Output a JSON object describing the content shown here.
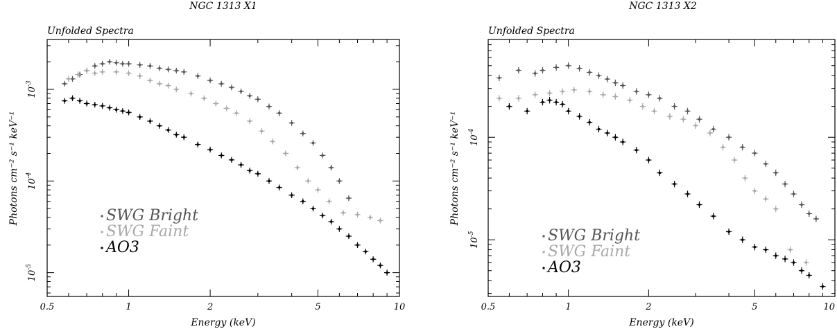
{
  "chart_data": [
    {
      "type": "scatter",
      "title": "NGC 1313 X1",
      "subtitle": "Unfolded Spectra",
      "xlabel": "Energy (keV)",
      "ylabel": "Photons cm⁻² s⁻¹ keV⁻¹",
      "xscale": "log",
      "yscale": "log",
      "xlim": [
        0.5,
        10
      ],
      "ylim": [
        5.5e-06,
        0.0035
      ],
      "x_ticks": [
        {
          "value": 0.5,
          "label": "0.5"
        },
        {
          "value": 1,
          "label": "1"
        },
        {
          "value": 2,
          "label": "2"
        },
        {
          "value": 5,
          "label": "5"
        },
        {
          "value": 10,
          "label": "10"
        }
      ],
      "y_ticks": [
        {
          "value": 1e-05,
          "mantissa": "10",
          "exp": "-5"
        },
        {
          "value": 0.0001,
          "mantissa": "10",
          "exp": "-4"
        },
        {
          "value": 0.001,
          "mantissa": "10",
          "exp": "-3"
        }
      ],
      "legend": {
        "placement": "bottom-left"
      },
      "series": [
        {
          "name": "SWG Bright",
          "color": "#555555",
          "x": [
            0.58,
            0.62,
            0.66,
            0.7,
            0.75,
            0.8,
            0.85,
            0.9,
            0.95,
            1.0,
            1.1,
            1.2,
            1.3,
            1.4,
            1.5,
            1.6,
            1.8,
            2.0,
            2.2,
            2.4,
            2.6,
            2.8,
            3.0,
            3.3,
            3.6,
            4.0,
            4.4,
            4.8,
            5.2,
            5.6,
            6.0,
            6.5
          ],
          "y": [
            0.00115,
            0.0013,
            0.00145,
            0.0016,
            0.0018,
            0.0019,
            0.002,
            0.00195,
            0.0019,
            0.0019,
            0.00185,
            0.0018,
            0.0017,
            0.00165,
            0.0016,
            0.00155,
            0.0014,
            0.00125,
            0.00115,
            0.00105,
            0.00095,
            0.00085,
            0.00078,
            0.00065,
            0.00055,
            0.00043,
            0.00033,
            0.00026,
            0.00019,
            0.00014,
            0.0001,
            6.5e-05
          ]
        },
        {
          "name": "SWG Faint",
          "color": "#a8a8a8",
          "x": [
            0.6,
            0.65,
            0.7,
            0.75,
            0.8,
            0.9,
            1.0,
            1.1,
            1.2,
            1.3,
            1.4,
            1.5,
            1.7,
            1.9,
            2.1,
            2.3,
            2.5,
            2.8,
            3.1,
            3.4,
            3.8,
            4.2,
            4.6,
            5.0,
            5.5,
            6.2,
            7.0,
            7.8,
            8.5
          ],
          "y": [
            0.0013,
            0.00145,
            0.0016,
            0.0015,
            0.00155,
            0.00155,
            0.0015,
            0.0014,
            0.00125,
            0.00115,
            0.0011,
            0.001,
            0.0009,
            0.0008,
            0.0007,
            0.00062,
            0.00055,
            0.00045,
            0.00035,
            0.00027,
            0.0002,
            0.00014,
            0.0001,
            8e-05,
            6e-05,
            4.5e-05,
            4.3e-05,
            4e-05,
            3.7e-05
          ]
        },
        {
          "name": "AO3",
          "color": "#000000",
          "x": [
            0.58,
            0.62,
            0.66,
            0.7,
            0.75,
            0.8,
            0.85,
            0.9,
            0.95,
            1.0,
            1.1,
            1.2,
            1.3,
            1.4,
            1.5,
            1.6,
            1.8,
            2.0,
            2.2,
            2.4,
            2.6,
            2.8,
            3.0,
            3.3,
            3.6,
            4.0,
            4.4,
            4.8,
            5.2,
            5.6,
            6.0,
            6.5,
            7.0,
            7.5,
            8.0,
            8.5,
            9.0
          ],
          "y": [
            0.00075,
            0.0008,
            0.00075,
            0.0007,
            0.00068,
            0.00066,
            0.00063,
            0.0006,
            0.00058,
            0.00056,
            0.0005,
            0.00045,
            0.0004,
            0.00036,
            0.00032,
            0.0003,
            0.00025,
            0.00022,
            0.00019,
            0.00017,
            0.00015,
            0.00013,
            0.00012,
            0.0001,
            8.5e-05,
            7e-05,
            6e-05,
            5e-05,
            4.2e-05,
            3.6e-05,
            3e-05,
            2.5e-05,
            2e-05,
            1.7e-05,
            1.4e-05,
            1.2e-05,
            1e-05
          ]
        }
      ]
    },
    {
      "type": "scatter",
      "title": "NGC 1313 X2",
      "subtitle": "Unfolded Spectra",
      "xlabel": "Energy (keV)",
      "ylabel": "Photons cm⁻² s⁻¹ keV⁻¹",
      "xscale": "log",
      "yscale": "log",
      "xlim": [
        0.5,
        10
      ],
      "ylim": [
        2.8e-06,
        0.0009
      ],
      "x_ticks": [
        {
          "value": 0.5,
          "label": "0.5"
        },
        {
          "value": 1,
          "label": "1"
        },
        {
          "value": 2,
          "label": "2"
        },
        {
          "value": 5,
          "label": "5"
        },
        {
          "value": 10,
          "label": "10"
        }
      ],
      "y_ticks": [
        {
          "value": 1e-05,
          "mantissa": "10",
          "exp": "-5"
        },
        {
          "value": 0.0001,
          "mantissa": "10",
          "exp": "-4"
        }
      ],
      "legend": {
        "placement": "bottom-left"
      },
      "series": [
        {
          "name": "SWG Bright",
          "color": "#555555",
          "x": [
            0.55,
            0.65,
            0.75,
            0.8,
            0.9,
            1.0,
            1.1,
            1.2,
            1.3,
            1.4,
            1.5,
            1.6,
            1.8,
            2.0,
            2.2,
            2.5,
            2.8,
            3.1,
            3.5,
            4.0,
            4.5,
            5.0,
            5.5,
            6.0,
            6.5,
            7.0,
            7.5,
            8.0,
            8.5
          ],
          "y": [
            0.00038,
            0.00045,
            0.00042,
            0.00045,
            0.00048,
            0.0005,
            0.00047,
            0.00043,
            0.0004,
            0.00037,
            0.00034,
            0.00032,
            0.00028,
            0.00026,
            0.00024,
            0.0002,
            0.00018,
            0.00015,
            0.00012,
            0.0001,
            8e-05,
            7e-05,
            5.5e-05,
            4.5e-05,
            3.5e-05,
            2.8e-05,
            2.2e-05,
            1.8e-05,
            1.6e-05
          ]
        },
        {
          "name": "SWG Faint",
          "color": "#a8a8a8",
          "x": [
            0.55,
            0.65,
            0.75,
            0.85,
            0.95,
            1.05,
            1.2,
            1.35,
            1.5,
            1.7,
            1.9,
            2.1,
            2.4,
            2.7,
            3.0,
            3.4,
            3.8,
            4.2,
            4.6,
            5.0,
            5.5,
            6.0,
            6.8,
            7.8
          ],
          "y": [
            0.00024,
            0.00024,
            0.00026,
            0.00027,
            0.00028,
            0.00029,
            0.00028,
            0.00026,
            0.00025,
            0.00023,
            0.0002,
            0.00018,
            0.00016,
            0.00015,
            0.00013,
            0.00011,
            8e-05,
            6e-05,
            4e-05,
            3e-05,
            2.5e-05,
            2e-05,
            8e-06,
            6e-06
          ]
        },
        {
          "name": "AO3",
          "color": "#000000",
          "x": [
            0.6,
            0.7,
            0.8,
            0.85,
            0.9,
            0.95,
            1.0,
            1.1,
            1.2,
            1.3,
            1.4,
            1.5,
            1.6,
            1.8,
            2.0,
            2.2,
            2.5,
            2.8,
            3.1,
            3.5,
            4.0,
            4.5,
            5.0,
            5.5,
            6.0,
            6.5,
            7.0,
            7.5,
            8.0,
            9.0
          ],
          "y": [
            0.0002,
            0.00018,
            0.00022,
            0.00023,
            0.00022,
            0.00021,
            0.00018,
            0.00016,
            0.00014,
            0.00012,
            0.00011,
            0.0001,
            9e-05,
            7.5e-05,
            6e-05,
            4.5e-05,
            3.5e-05,
            2.8e-05,
            2.2e-05,
            1.7e-05,
            1.2e-05,
            1e-05,
            8.5e-06,
            8e-06,
            7e-06,
            6.5e-06,
            6e-06,
            5e-06,
            4.5e-06,
            3.5e-06
          ]
        }
      ]
    }
  ]
}
